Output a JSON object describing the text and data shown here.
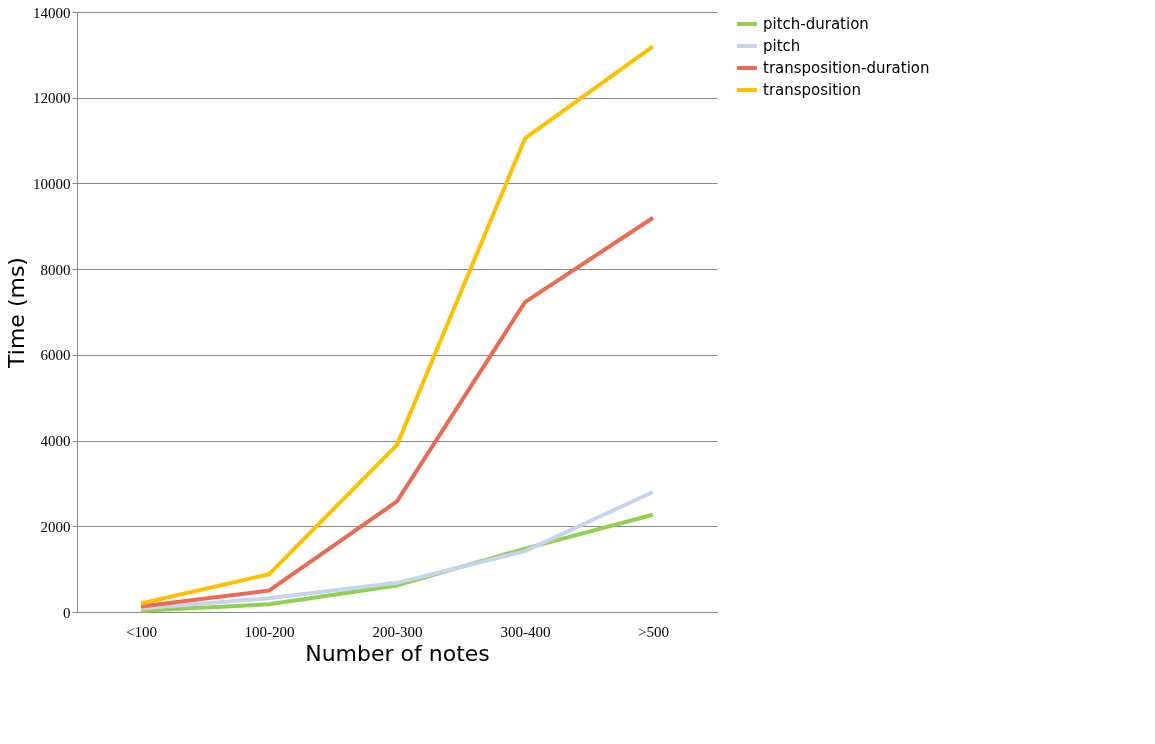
{
  "chart_data": {
    "type": "line",
    "xlabel": "Number of notes",
    "ylabel": "Time (ms)",
    "categories": [
      "<100",
      "100-200",
      "200-300",
      "300-400",
      ">500"
    ],
    "series": [
      {
        "name": "pitch-duration",
        "color": "#92d050",
        "values": [
          30,
          180,
          620,
          1480,
          2270
        ]
      },
      {
        "name": "pitch",
        "color": "#c6d4ee",
        "values": [
          80,
          320,
          680,
          1420,
          2800
        ]
      },
      {
        "name": "transposition-duration",
        "color": "#e96b55",
        "values": [
          130,
          500,
          2580,
          7230,
          9200
        ]
      },
      {
        "name": "transposition",
        "color": "#ffc000",
        "values": [
          200,
          880,
          3900,
          11050,
          13200
        ]
      }
    ],
    "ylim": [
      0,
      14000
    ],
    "yticks": [
      0,
      2000,
      4000,
      6000,
      8000,
      10000,
      12000,
      14000
    ],
    "grid": "y",
    "legend": "right",
    "marker": "none",
    "line_style": "solid"
  }
}
